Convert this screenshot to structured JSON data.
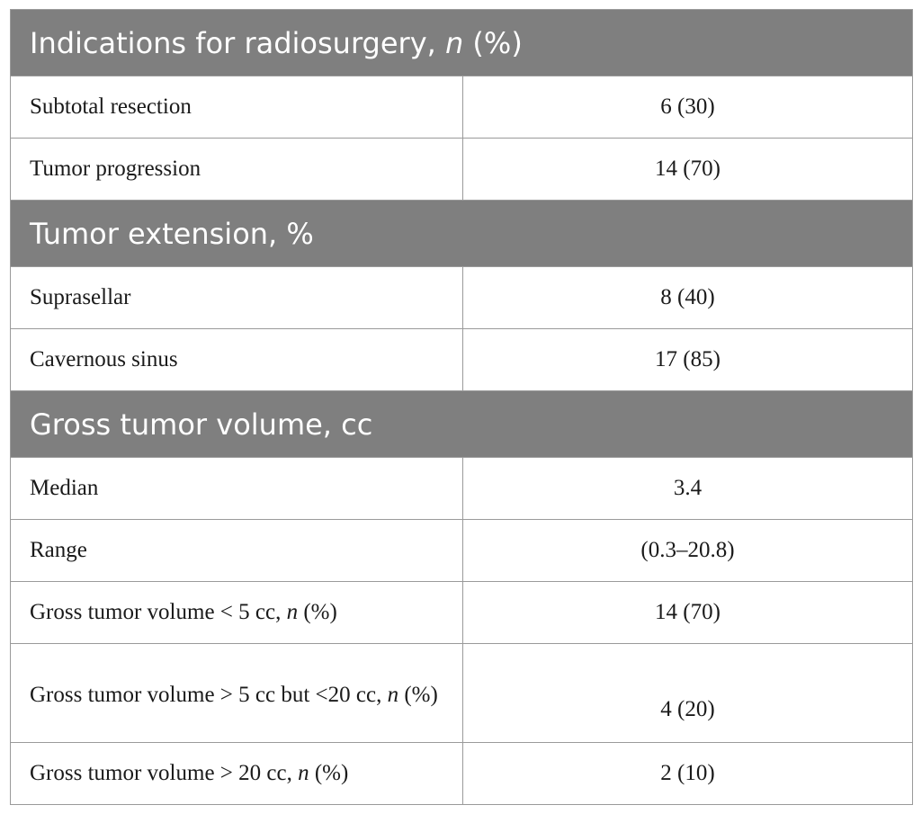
{
  "sections": [
    {
      "title_main": "Indications for radiosurgery, ",
      "title_italic": "n",
      "title_tail": " (%)",
      "rows": [
        {
          "label": "Subtotal resection",
          "value": "6 (30)"
        },
        {
          "label": "Tumor progression",
          "value": "14 (70)"
        }
      ]
    },
    {
      "title_main": "Tumor extension, %",
      "rows": [
        {
          "label": "Suprasellar",
          "value": "8 (40)"
        },
        {
          "label": "Cavernous sinus",
          "value": "17 (85)"
        }
      ]
    },
    {
      "title_main": "Gross tumor volume, cc",
      "rows": [
        {
          "label": "Median",
          "value": "3.4"
        },
        {
          "label": "Range",
          "value": "(0.3–20.8)"
        },
        {
          "label_main": "Gross tumor volume < 5 cc, ",
          "label_italic": "n",
          "label_tail": " (%)",
          "value": "14 (70)"
        },
        {
          "label_main": "Gross tumor volume > 5 cc but <20 cc, ",
          "label_italic": "n",
          "label_tail": " (%)",
          "value": "4 (20)"
        },
        {
          "label_main": "Gross tumor volume > 20 cc, ",
          "label_italic": "n",
          "label_tail": " (%)",
          "value": "2 (10)"
        }
      ]
    }
  ]
}
